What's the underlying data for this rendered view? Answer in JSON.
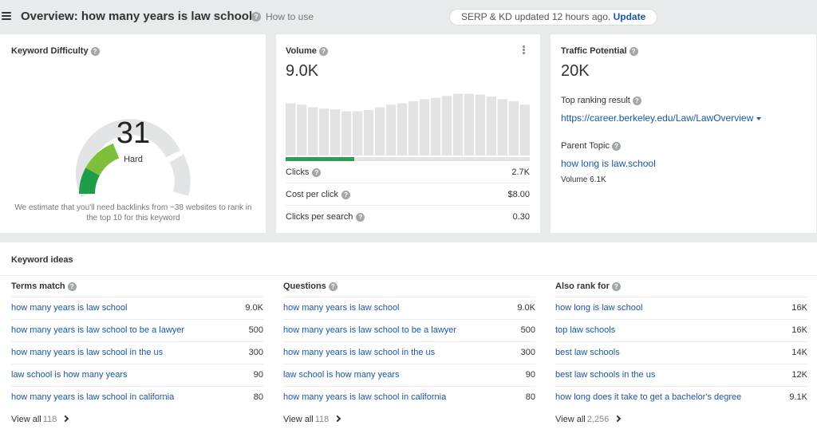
{
  "header": {
    "title": "Overview: how many years is law school",
    "help_glyph": "?",
    "how_to_use": "How to use",
    "status_text": "SERP & KD updated 12 hours ago.",
    "update_label": "Update"
  },
  "keyword_difficulty": {
    "title": "Keyword Difficulty",
    "score": "31",
    "score_value": 31,
    "label": "Hard",
    "note": "We estimate that you'll need backlinks from ~38 websites to rank in the top 10 for this keyword",
    "colors": {
      "low": "#1f9e4a",
      "mid": "#7fbf3a",
      "track": "#e3e4e5"
    }
  },
  "volume": {
    "title": "Volume",
    "value": "9.0K",
    "trend_levels": [
      0.78,
      0.76,
      0.72,
      0.7,
      0.69,
      0.66,
      0.66,
      0.68,
      0.72,
      0.76,
      0.78,
      0.81,
      0.84,
      0.86,
      0.89,
      0.92,
      0.92,
      0.91,
      0.88,
      0.84,
      0.81,
      0.76
    ],
    "clicks_share": 0.28,
    "colors": {
      "bar": "#e3e3e3",
      "clicks": "#2f9e53"
    },
    "metrics": [
      {
        "label": "Clicks",
        "value": "2.7K"
      },
      {
        "label": "Cost per click",
        "value": "$8.00"
      },
      {
        "label": "Clicks per search",
        "value": "0.30"
      }
    ]
  },
  "traffic_potential": {
    "title": "Traffic Potential",
    "value": "20K",
    "top_ranking_label": "Top ranking result",
    "top_ranking_url": "https://career.berkeley.edu/Law/LawOverview",
    "parent_topic_label": "Parent Topic",
    "parent_topic": "how long is law.school",
    "parent_volume": "Volume 6.1K"
  },
  "keyword_ideas": {
    "title": "Keyword ideas",
    "view_all_label": "View all",
    "columns": [
      {
        "title": "Terms match",
        "rows": [
          {
            "keyword": "how many years is law school",
            "volume": "9.0K"
          },
          {
            "keyword": "how many years is law school to be a lawyer",
            "volume": "500"
          },
          {
            "keyword": "how many years is law school in the us",
            "volume": "300"
          },
          {
            "keyword": "law school is how many years",
            "volume": "90"
          },
          {
            "keyword": "how many years is law school in california",
            "volume": "80"
          }
        ],
        "count": "118"
      },
      {
        "title": "Questions",
        "rows": [
          {
            "keyword": "how many years is law school",
            "volume": "9.0K"
          },
          {
            "keyword": "how many years is law school to be a lawyer",
            "volume": "500"
          },
          {
            "keyword": "how many years is law school in the us",
            "volume": "300"
          },
          {
            "keyword": "law school is how many years",
            "volume": "90"
          },
          {
            "keyword": "how many years is law school in california",
            "volume": "80"
          }
        ],
        "count": "118"
      },
      {
        "title": "Also rank for",
        "rows": [
          {
            "keyword": "how long is law school",
            "volume": "16K"
          },
          {
            "keyword": "top law schools",
            "volume": "16K"
          },
          {
            "keyword": "best law schools",
            "volume": "14K"
          },
          {
            "keyword": "best law schools in the us",
            "volume": "12K"
          },
          {
            "keyword": "how long does it take to get a bachelor's degree",
            "volume": "9.1K"
          }
        ],
        "count": "2,256"
      }
    ]
  }
}
